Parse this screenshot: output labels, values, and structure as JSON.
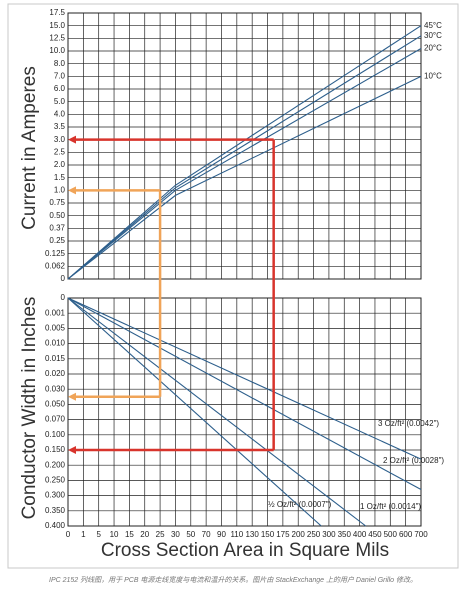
{
  "chart_data": [
    {
      "type": "line",
      "ylabel": "Current in Amperes",
      "xlim": [
        0,
        700
      ],
      "xticks": [
        0,
        1,
        5,
        10,
        15,
        20,
        25,
        30,
        50,
        70,
        90,
        110,
        130,
        150,
        175,
        200,
        250,
        300,
        350,
        400,
        450,
        500,
        600,
        700
      ],
      "ylim": [
        0,
        17.5
      ],
      "yticks": [
        0,
        0.062,
        0.125,
        0.25,
        0.37,
        {
          "value": 0.5,
          "label": "0.50"
        },
        0.75,
        {
          "value": 1,
          "label": "1.0"
        },
        1.5,
        {
          "value": 2,
          "label": "2.0"
        },
        2.5,
        {
          "value": 3,
          "label": "3.0"
        },
        3.5,
        {
          "value": 4,
          "label": "4.0"
        },
        {
          "value": 5,
          "label": "5.0"
        },
        {
          "value": 6,
          "label": "6.0"
        },
        {
          "value": 7,
          "label": "7.0"
        },
        {
          "value": 8,
          "label": "8.0"
        },
        {
          "value": 10,
          "label": "10.0"
        },
        12.5,
        {
          "value": 15,
          "label": "15.0"
        },
        17.5
      ],
      "grid": true,
      "series": [
        {
          "name": "45°C",
          "color": "#2d5f8c",
          "x": [
            0,
            30,
            700
          ],
          "values": [
            0,
            1.2,
            15
          ]
        },
        {
          "name": "30°C",
          "color": "#2d5f8c",
          "x": [
            0,
            30,
            700
          ],
          "values": [
            0,
            1.1,
            13
          ]
        },
        {
          "name": "20°C",
          "color": "#2d5f8c",
          "x": [
            0,
            30,
            700
          ],
          "values": [
            0,
            1,
            10.5
          ]
        },
        {
          "name": "10°C",
          "color": "#2d5f8c",
          "x": [
            0,
            30,
            700
          ],
          "values": [
            0,
            0.9,
            7
          ]
        }
      ]
    },
    {
      "type": "line",
      "xlabel": "Cross Section Area in Square Mils",
      "ylabel": "Conductor Width in Inches",
      "xlim": [
        0,
        700
      ],
      "xticks": [
        0,
        1,
        5,
        10,
        15,
        20,
        25,
        30,
        50,
        70,
        90,
        110,
        130,
        150,
        175,
        200,
        250,
        300,
        350,
        400,
        450,
        500,
        600,
        700
      ],
      "ylim": [
        0,
        0.4
      ],
      "reversed": true,
      "yticks": [
        0,
        0.001,
        0.005,
        {
          "value": 0.01,
          "label": "0.010"
        },
        0.015,
        {
          "value": 0.02,
          "label": "0.020"
        },
        {
          "value": 0.03,
          "label": "0.030"
        },
        {
          "value": 0.05,
          "label": "0.050"
        },
        {
          "value": 0.07,
          "label": "0.070"
        },
        {
          "value": 0.1,
          "label": "0.100"
        },
        {
          "value": 0.15,
          "label": "0.150"
        },
        {
          "value": 0.2,
          "label": "0.200"
        },
        {
          "value": 0.25,
          "label": "0.250"
        },
        {
          "value": 0.3,
          "label": "0.300"
        },
        {
          "value": 0.35,
          "label": "0.350"
        },
        {
          "value": 0.4,
          "label": "0.400"
        }
      ],
      "grid": true,
      "series": [
        {
          "name": "½ Oz/ft² (0.0007\")",
          "color": "#2d5f8c",
          "x": [
            0,
            275
          ],
          "values": [
            0,
            0.4
          ]
        },
        {
          "name": "1 Oz/ft² (0.0014\")",
          "color": "#2d5f8c",
          "x": [
            0,
            420
          ],
          "values": [
            0,
            0.4
          ]
        },
        {
          "name": "2 Oz/ft² (0.0028\")",
          "color": "#2d5f8c",
          "x": [
            0,
            700
          ],
          "values": [
            0,
            0.28
          ]
        },
        {
          "name": "3 Oz/ft² (0.0042\")",
          "color": "#2d5f8c",
          "x": [
            0,
            700
          ],
          "values": [
            0,
            0.18
          ]
        }
      ]
    }
  ],
  "guides": [
    {
      "color": "#d8342c",
      "current": 3,
      "area": 160,
      "width": 0.15
    },
    {
      "color": "#f0a458",
      "current": 1,
      "area": 25,
      "width": 0.04
    }
  ],
  "caption": "IPC 2152 列线图，用于 PCB 电源走线宽度与电流和温升的关系。图片由 StackExchange 上的用户 Daniel Grillo 修改。"
}
